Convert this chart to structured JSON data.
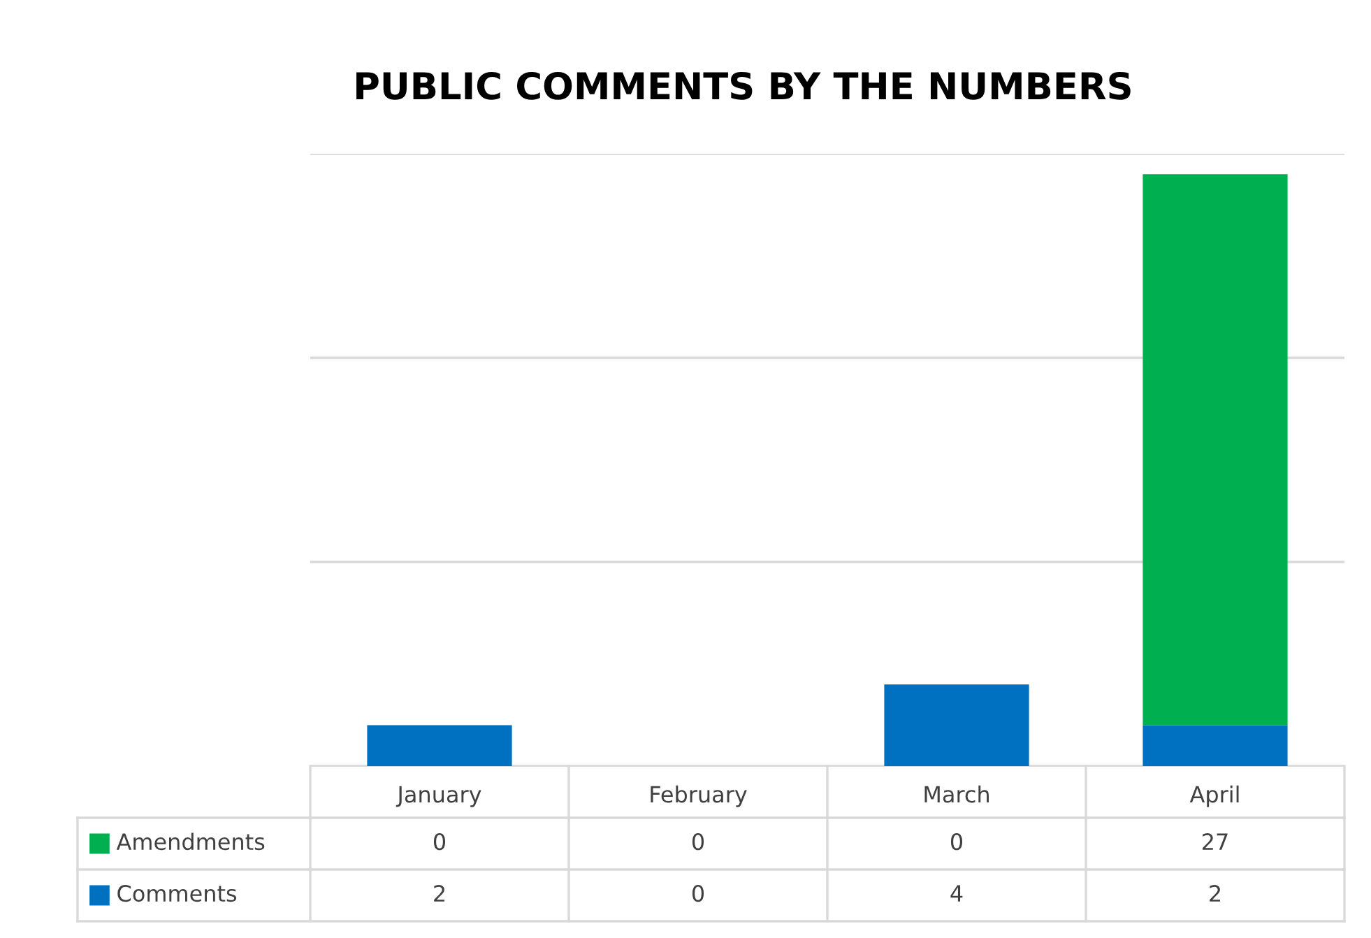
{
  "chart_data": {
    "type": "bar",
    "title": "PUBLIC COMMENTS BY THE NUMBERS",
    "categories": [
      "January",
      "February",
      "March",
      "April"
    ],
    "stacked": true,
    "series": [
      {
        "name": "Comments",
        "color": "#0070c0",
        "values": [
          2,
          0,
          4,
          2
        ]
      },
      {
        "name": "Amendments",
        "color": "#00b050",
        "values": [
          0,
          0,
          0,
          27
        ]
      }
    ],
    "ylim": [
      0,
      30
    ],
    "yticks": [
      {
        "value": 0,
        "label": null
      },
      {
        "value": 10,
        "label": null
      },
      {
        "value": 20,
        "label": null
      },
      {
        "value": 30,
        "label": null
      }
    ],
    "grid": "y",
    "tick_labels": "x",
    "data_labels": true,
    "legend": "bottom left"
  }
}
